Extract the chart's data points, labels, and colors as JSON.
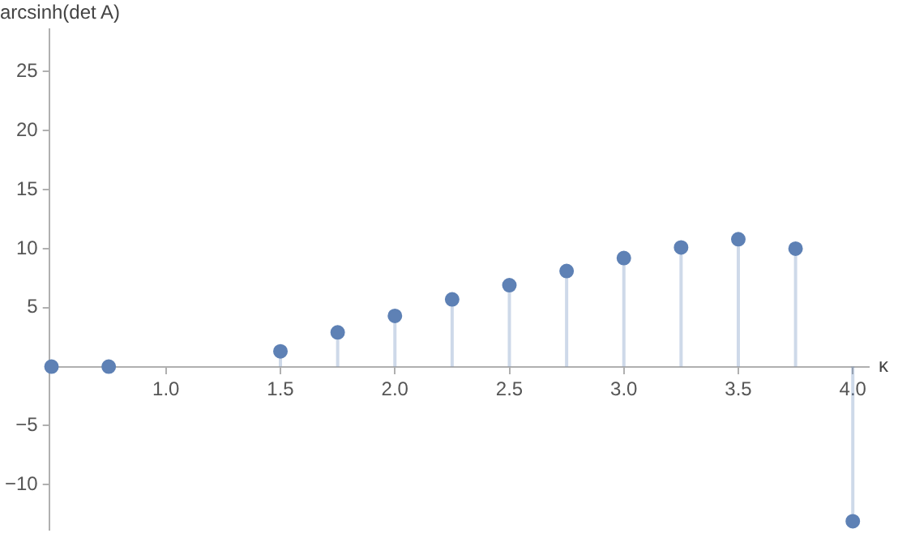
{
  "chart_data": {
    "type": "lollipop",
    "xlabel": "κ",
    "ylabel": "arcsinh(det A)",
    "x": [
      0.5,
      0.75,
      1.25,
      1.5,
      1.75,
      2.0,
      2.25,
      2.5,
      2.75,
      3.0,
      3.25,
      3.5,
      3.75,
      4.0
    ],
    "series": [
      {
        "color": "#5e81b5",
        "values": [
          0,
          0,
          null,
          1.3,
          2.9,
          4.3,
          5.7,
          6.9,
          8.1,
          9.2,
          10.1,
          10.8,
          10.0,
          -13.1
        ]
      }
    ],
    "xlim": [
      0.49,
      4.07
    ],
    "ylim": [
      -13.8,
      28.6
    ],
    "xticks": [
      {
        "value": 1,
        "label": "1.0"
      },
      {
        "value": 1.5,
        "label": "1.5"
      },
      {
        "value": 2,
        "label": "2.0"
      },
      {
        "value": 2.5,
        "label": "2.5"
      },
      {
        "value": 3,
        "label": "3.0"
      },
      {
        "value": 3.5,
        "label": "3.5"
      },
      {
        "value": 4,
        "label": "4.0"
      }
    ],
    "yticks": [
      {
        "value": -10,
        "label": "−10"
      },
      {
        "value": -5,
        "label": "−5"
      },
      5,
      10,
      15,
      20,
      25
    ],
    "grid": false,
    "legend": false,
    "marker": "circle"
  }
}
